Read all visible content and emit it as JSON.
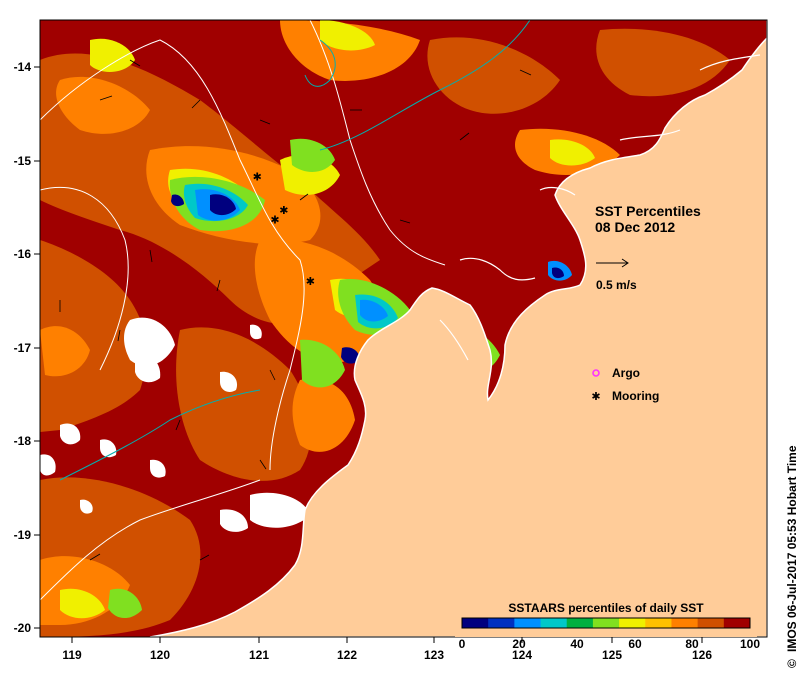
{
  "title": {
    "line1": "SST Percentiles",
    "line2": "08 Dec 2012"
  },
  "vector_scale": {
    "label": "0.5 m/s"
  },
  "legend": {
    "argo_label": "Argo",
    "mooring_label": "Mooring",
    "argo_color": "#ff33ff",
    "mooring_color": "#000000"
  },
  "colorbar": {
    "title": "SSTAARS percentiles of daily SST",
    "ticks": [
      "0",
      "20",
      "40",
      "60",
      "80",
      "100"
    ],
    "colors": [
      "#00007f",
      "#0030c0",
      "#0090ff",
      "#00c8c8",
      "#00b040",
      "#80e020",
      "#f0f000",
      "#ffc000",
      "#ff8000",
      "#d05000",
      "#a00000"
    ]
  },
  "credit": "IMOS 06-Jul-2017 05:53 Hobart Time",
  "credit_symbol": "©",
  "x_axis": {
    "ticks": [
      "119",
      "120",
      "121",
      "122",
      "123",
      "124",
      "125",
      "126"
    ]
  },
  "y_axis": {
    "ticks": [
      "-14",
      "-15",
      "-16",
      "-17",
      "-18",
      "-19",
      "-20"
    ]
  },
  "colors": {
    "land": "#ffcc99",
    "high": "#a00000",
    "mid": "#d05000",
    "orange": "#ff8000",
    "contour": "#ffffff",
    "contour_alt": "#00b0b0"
  },
  "chart_data": {
    "type": "map",
    "extent": {
      "lon": [
        118.6,
        126.8
      ],
      "lat": [
        -20.1,
        -13.6
      ]
    },
    "moorings": [
      {
        "lon": 121.05,
        "lat": -15.25
      },
      {
        "lon": 121.35,
        "lat": -15.6
      },
      {
        "lon": 121.25,
        "lat": -15.7
      },
      {
        "lon": 121.65,
        "lat": -16.35
      }
    ]
  }
}
